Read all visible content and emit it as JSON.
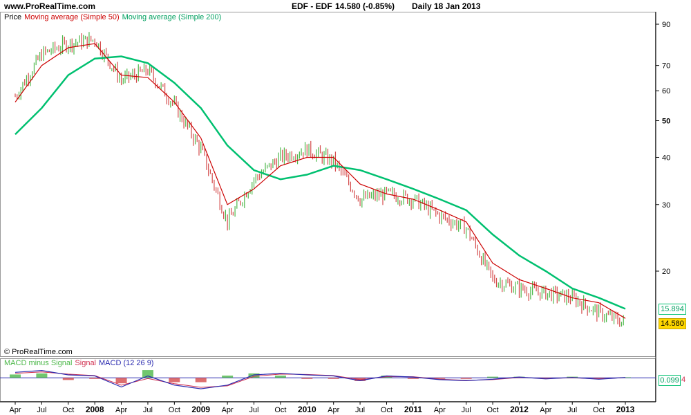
{
  "header": {
    "site": "www.ProRealTime.com",
    "ticker": "EDF - EDF",
    "quote": "14.580 (-0.85%)",
    "period": "Daily",
    "date": "18 Jan 2013"
  },
  "legend": {
    "price": "Price",
    "ma50": "Moving average (Simple 50)",
    "ma200": "Moving average (Simple 200)"
  },
  "copyright": "© ProRealTime.com",
  "macd_legend": {
    "hist": "MACD minus Signal",
    "signal": "Signal",
    "macd": "MACD (12 26 9)"
  },
  "price_labels": {
    "ma200": "15.894",
    "last": "14.580",
    "macd_value": "0.099",
    "macd_suffix": "4"
  },
  "colors": {
    "up": "#4db84a",
    "down": "#d44b4b",
    "ma50": "#cc0000",
    "ma200": "#00c070",
    "macd": "#2b2bb0",
    "signal": "#d03050",
    "last_bg": "#ffd700"
  },
  "chart_data": [
    {
      "type": "line",
      "scale": "log",
      "ylim": [
        13,
        95
      ],
      "y_ticks": [
        20,
        30,
        40,
        50,
        60,
        70,
        90
      ],
      "y_tick_labels": [
        "20",
        "30",
        "40",
        "50",
        "60",
        "70",
        "90"
      ],
      "x_labels": [
        "Apr",
        "Jul",
        "Oct",
        "2008",
        "Apr",
        "Jul",
        "Oct",
        "2009",
        "Apr",
        "Jul",
        "Oct",
        "2010",
        "Apr",
        "Jul",
        "Oct",
        "2011",
        "Apr",
        "Jul",
        "Oct",
        "2012",
        "Apr",
        "Jul",
        "Oct",
        "2013"
      ],
      "x": [
        "2007-03",
        "2007-06",
        "2007-09",
        "2008-01",
        "2008-04",
        "2008-07",
        "2008-10",
        "2009-01",
        "2009-04",
        "2009-07",
        "2009-10",
        "2010-01",
        "2010-04",
        "2010-07",
        "2010-10",
        "2011-01",
        "2011-04",
        "2011-07",
        "2011-10",
        "2012-01",
        "2012-04",
        "2012-07",
        "2012-10",
        "2013-01"
      ],
      "series": [
        {
          "name": "Price",
          "values": [
            58,
            75,
            80,
            82,
            64,
            68,
            55,
            42,
            27,
            35,
            40,
            42,
            39,
            31,
            32,
            31,
            28,
            26,
            19,
            18,
            17.5,
            17,
            15.5,
            14.58
          ]
        },
        {
          "name": "Moving average (Simple 50)",
          "values": [
            56,
            70,
            78,
            80,
            66,
            65,
            56,
            45,
            30,
            33,
            38,
            40,
            40,
            34,
            32,
            31,
            29,
            27,
            21,
            19,
            18,
            17,
            16.5,
            15.0
          ]
        },
        {
          "name": "Moving average (Simple 200)",
          "values": [
            46,
            54,
            66,
            73,
            74,
            71,
            63,
            54,
            43,
            37,
            35,
            36,
            38,
            37,
            35,
            33,
            31,
            29,
            25,
            22,
            20,
            18,
            17,
            15.894
          ]
        }
      ]
    },
    {
      "type": "area",
      "title": "MACD (12 26 9)",
      "ylim": [
        -6,
        4
      ],
      "series": [
        {
          "name": "MACD (12 26 9)",
          "values": [
            1.5,
            2.0,
            0.8,
            0.5,
            -2.5,
            0.5,
            -2.0,
            -3.0,
            -2.0,
            0.8,
            1.2,
            0.8,
            0.5,
            -0.8,
            0.5,
            0.2,
            -0.5,
            -0.8,
            -0.4,
            0.2,
            -0.3,
            0.1,
            -0.4,
            0.099
          ]
        },
        {
          "name": "Signal",
          "values": [
            1.2,
            1.6,
            1.0,
            0.6,
            -2.0,
            -0.2,
            -1.6,
            -2.6,
            -2.2,
            0.4,
            1.0,
            0.9,
            0.6,
            -0.5,
            0.3,
            0.3,
            -0.4,
            -0.7,
            -0.5,
            0.1,
            -0.2,
            0.0,
            -0.3,
            0.05
          ]
        },
        {
          "name": "MACD minus Signal",
          "values": [
            0.3,
            0.4,
            -0.2,
            -0.1,
            -0.5,
            0.7,
            -0.4,
            -0.4,
            0.2,
            0.4,
            0.2,
            -0.1,
            -0.1,
            -0.3,
            0.2,
            -0.1,
            -0.1,
            -0.1,
            0.1,
            0.1,
            -0.1,
            0.1,
            -0.1,
            0.05
          ]
        }
      ]
    }
  ]
}
